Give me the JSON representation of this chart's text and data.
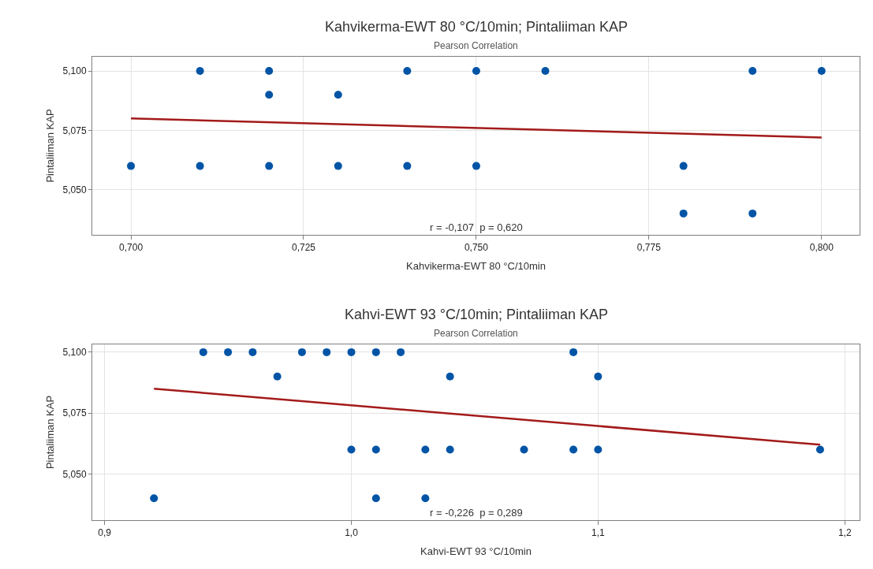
{
  "chart_data": [
    {
      "type": "scatter",
      "title": "Kahvikerma-EWT 80 °C/10min; Pintaliiman KAP",
      "subtitle": "Pearson Correlation",
      "xlabel": "Kahvikerma-EWT 80 °C/10min",
      "ylabel": "Pintaliiman KAP",
      "xlim": [
        0.6944,
        0.8055
      ],
      "xticks": [
        {
          "value": 0.7,
          "label": "0,700"
        },
        {
          "value": 0.725,
          "label": "0,725"
        },
        {
          "value": 0.75,
          "label": "0,750"
        },
        {
          "value": 0.775,
          "label": "0,775"
        },
        {
          "value": 0.8,
          "label": "0,800"
        }
      ],
      "ylim": [
        5.031,
        5.106
      ],
      "yticks": [
        {
          "value": 5.05,
          "label": "5,050"
        },
        {
          "value": 5.075,
          "label": "5,075"
        },
        {
          "value": 5.1,
          "label": "5,100"
        }
      ],
      "grid": true,
      "marker": "circle",
      "series": [
        {
          "color": "#0054a6",
          "x": [
            0.7,
            0.71,
            0.71,
            0.72,
            0.72,
            0.72,
            0.73,
            0.73,
            0.74,
            0.74,
            0.75,
            0.75,
            0.76,
            0.78,
            0.78,
            0.79,
            0.79,
            0.8
          ],
          "values": [
            5.06,
            5.1,
            5.06,
            5.1,
            5.09,
            5.06,
            5.09,
            5.06,
            5.1,
            5.06,
            5.1,
            5.06,
            5.1,
            5.06,
            5.04,
            5.1,
            5.04,
            5.1
          ]
        },
        {
          "type": "line",
          "color": "#a31a1a",
          "marker": "none",
          "x": [
            0.7,
            0.8
          ],
          "values": [
            5.08,
            5.072
          ]
        }
      ],
      "annotations": [
        "r = -0,107  p = 0,620"
      ]
    },
    {
      "type": "scatter",
      "title": "Kahvi-EWT 93 °C/10min; Pintaliiman KAP",
      "subtitle": "Pearson Correlation",
      "xlabel": "Kahvi-EWT 93 °C/10min",
      "ylabel": "Pintaliiman KAP",
      "xlim": [
        0.895,
        1.206
      ],
      "xticks": [
        {
          "value": 0.9,
          "label": "0,9"
        },
        {
          "value": 1.0,
          "label": "1,0"
        },
        {
          "value": 1.1,
          "label": "1,1"
        },
        {
          "value": 1.2,
          "label": "1,2"
        }
      ],
      "ylim": [
        5.031,
        5.1032
      ],
      "yticks": [
        {
          "value": 5.05,
          "label": "5,050"
        },
        {
          "value": 5.075,
          "label": "5,075"
        },
        {
          "value": 5.1,
          "label": "5,100"
        }
      ],
      "grid": true,
      "marker": "circle",
      "series": [
        {
          "color": "#0054a6",
          "x": [
            0.94,
            0.95,
            0.96,
            0.98,
            0.99,
            1.0,
            1.01,
            1.02,
            1.09,
            0.97,
            1.04,
            1.1,
            1.0,
            1.01,
            1.03,
            1.04,
            1.07,
            1.09,
            1.1,
            1.19,
            0.92,
            1.01,
            1.03
          ],
          "values": [
            5.1,
            5.1,
            5.1,
            5.1,
            5.1,
            5.1,
            5.1,
            5.1,
            5.1,
            5.09,
            5.09,
            5.09,
            5.06,
            5.06,
            5.06,
            5.06,
            5.06,
            5.06,
            5.06,
            5.06,
            5.04,
            5.04,
            5.04
          ]
        },
        {
          "type": "line",
          "color": "#a31a1a",
          "marker": "none",
          "x": [
            0.92,
            1.19
          ],
          "values": [
            5.085,
            5.062
          ]
        }
      ],
      "annotations": [
        "r = -0,226  p = 0,289"
      ]
    }
  ]
}
